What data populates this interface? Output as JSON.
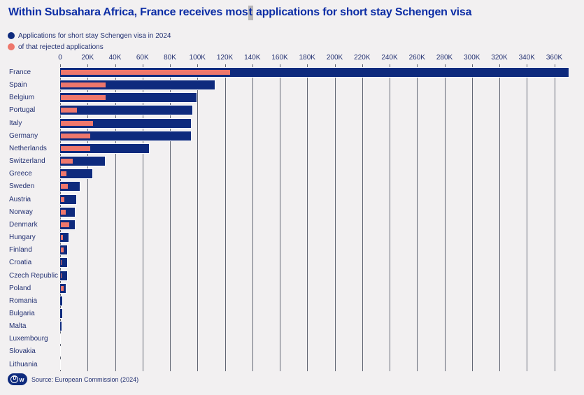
{
  "title": {
    "pre": "Within Subsahara Africa, France receives mos",
    "cursor_char": "t",
    "post": " applications for short stay Schengen visa"
  },
  "legend": [
    {
      "label": "Applications for short stay Schengen visa in 2024",
      "color": "#0e2a7d"
    },
    {
      "label": "of that rejected applications",
      "color": "#ee776c"
    }
  ],
  "footer": {
    "logo": "DW",
    "logo_d": "D",
    "logo_w": "w",
    "source": "Source: European Commission (2024)"
  },
  "colors": {
    "background": "#f2f0f1",
    "applications_bar": "#0e2a7d",
    "rejected_bar": "#ee776c",
    "gridline": "#616673",
    "title_text": "#0c2da5",
    "label_text": "#233172"
  },
  "chart_data": {
    "type": "bar",
    "orientation": "horizontal",
    "title": "Within Subsahara Africa, France receives most applications for short stay Schengen visa",
    "categories": [
      "France",
      "Spain",
      "Belgium",
      "Portugal",
      "Italy",
      "Germany",
      "Netherlands",
      "Switzerland",
      "Greece",
      "Sweden",
      "Austria",
      "Norway",
      "Denmark",
      "Hungary",
      "Finland",
      "Croatia",
      "Czech Republic",
      "Poland",
      "Romania",
      "Bulgaria",
      "Malta",
      "Luxembourg",
      "Slovakia",
      "Lithuania"
    ],
    "series": [
      {
        "name": "Applications for short stay Schengen visa in 2024",
        "color": "#0e2a7d",
        "values": [
          371000,
          113000,
          100000,
          97000,
          96000,
          96000,
          65000,
          33000,
          24000,
          15000,
          12000,
          11400,
          11200,
          6400,
          5800,
          5400,
          5400,
          4600,
          2000,
          2000,
          1500,
          600,
          350,
          300
        ]
      },
      {
        "name": "of that rejected applications",
        "color": "#ee776c",
        "values": [
          124000,
          33000,
          33000,
          12000,
          24000,
          22000,
          22000,
          9000,
          4800,
          5500,
          3200,
          3900,
          6800,
          2000,
          2400,
          600,
          1200,
          2400,
          400,
          400,
          250,
          150,
          80,
          60
        ]
      }
    ],
    "x_axis": {
      "ticks": [
        "0",
        "20K",
        "40K",
        "60K",
        "80K",
        "100K",
        "120K",
        "140K",
        "160K",
        "180K",
        "200K",
        "220K",
        "240K",
        "260K",
        "280K",
        "300K",
        "320K",
        "340K",
        "360K"
      ],
      "tick_values": [
        0,
        20000,
        40000,
        60000,
        80000,
        100000,
        120000,
        140000,
        160000,
        180000,
        200000,
        220000,
        240000,
        260000,
        280000,
        300000,
        320000,
        340000,
        360000
      ],
      "max": 374000
    },
    "grid": true,
    "legend_position": "top-left",
    "source": "European Commission (2024)"
  }
}
